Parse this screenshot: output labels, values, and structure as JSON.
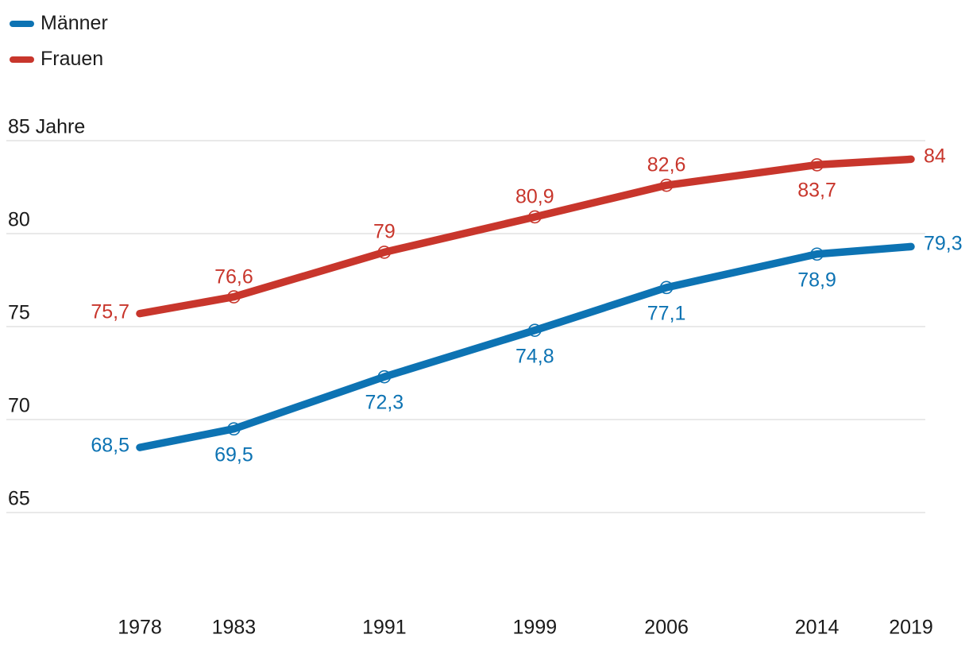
{
  "legend": {
    "items": [
      {
        "label": "Männer",
        "color": "#0d73b3"
      },
      {
        "label": "Frauen",
        "color": "#c8362c"
      }
    ]
  },
  "chart_data": {
    "type": "line",
    "x": [
      1978,
      1983,
      1991,
      1999,
      2006,
      2014,
      2019
    ],
    "x_tick_labels": [
      "1978",
      "1983",
      "1991",
      "1999",
      "2006",
      "2014",
      "2019"
    ],
    "y_axis": {
      "ticks": [
        65,
        70,
        75,
        80,
        85
      ],
      "tick_labels": [
        "65",
        "70",
        "75",
        "80",
        "85 Jahre"
      ],
      "range": [
        65,
        85
      ],
      "unit": "Jahre"
    },
    "series": [
      {
        "name": "Männer",
        "color": "#0d73b3",
        "values": [
          68.5,
          69.5,
          72.3,
          74.8,
          77.1,
          78.9,
          79.3
        ],
        "value_labels": [
          "68,5",
          "69,5",
          "72,3",
          "74,8",
          "77,1",
          "78,9",
          "79,3"
        ],
        "label_positions": [
          "left",
          "below",
          "below",
          "below",
          "below",
          "below",
          "right"
        ]
      },
      {
        "name": "Frauen",
        "color": "#c8362c",
        "values": [
          75.7,
          76.6,
          79,
          80.9,
          82.6,
          83.7,
          84
        ],
        "value_labels": [
          "75,7",
          "76,6",
          "79",
          "80,9",
          "82,6",
          "83,7",
          "84"
        ],
        "label_positions": [
          "left",
          "above",
          "above",
          "above",
          "above",
          "below",
          "right"
        ]
      }
    ],
    "markers": {
      "ring_years": [
        1983,
        1991,
        1999,
        2006,
        2014
      ]
    },
    "grid": true,
    "gridline_color": "#e2e2e2",
    "legend_position": "top-left"
  }
}
